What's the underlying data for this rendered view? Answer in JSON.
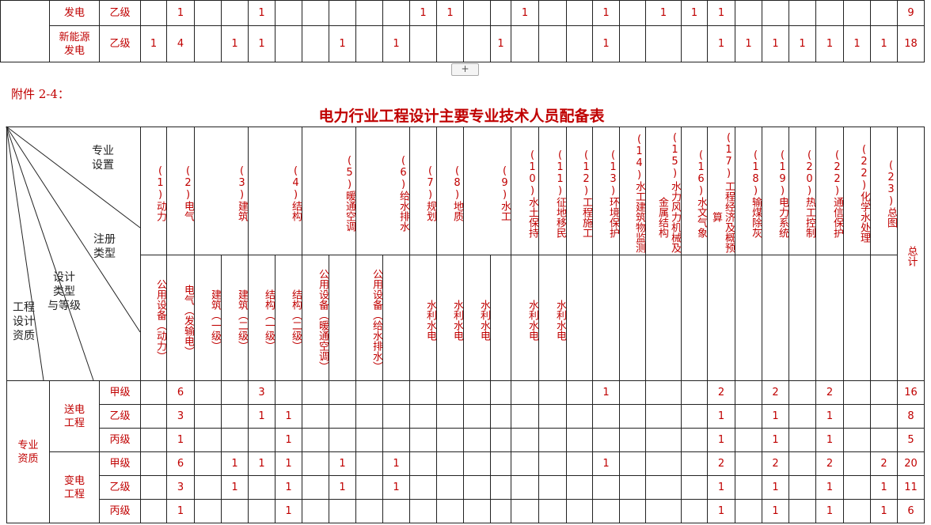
{
  "upper_table": {
    "rows": [
      {
        "category": [
          "发电"
        ],
        "grade": "乙级",
        "values": [
          null,
          1,
          null,
          null,
          1,
          null,
          null,
          null,
          null,
          null,
          1,
          1,
          null,
          null,
          1,
          null,
          null,
          1,
          null,
          1,
          1,
          1,
          null,
          null,
          null,
          null,
          null,
          null,
          9
        ]
      },
      {
        "category": [
          "新能源",
          "发电"
        ],
        "grade": "乙级",
        "values": [
          1,
          4,
          null,
          1,
          1,
          null,
          null,
          1,
          null,
          1,
          null,
          null,
          null,
          1,
          null,
          null,
          null,
          1,
          null,
          null,
          null,
          1,
          1,
          1,
          1,
          1,
          1,
          1,
          18
        ]
      }
    ]
  },
  "expand_button": "+",
  "attachment_label": "附件 2-4：",
  "title": "电力行业工程设计主要专业技术人员配备表",
  "table": {
    "corner": [
      {
        "lines": [
          "专业",
          "设置"
        ]
      },
      {
        "lines": [
          "注册",
          "类型"
        ]
      },
      {
        "lines": [
          "设计",
          "类型",
          "与等级"
        ]
      },
      {
        "lines": [
          "工程",
          "设计",
          "资质"
        ]
      }
    ],
    "groups": [
      {
        "number": "(1)",
        "name": "动力",
        "subs": [
          "公用设备（动力）"
        ]
      },
      {
        "number": "(2)",
        "name": "电气",
        "subs": [
          "电气（发输电）"
        ]
      },
      {
        "number": "(3)",
        "name": "建筑",
        "subs": [
          "建筑（一级）",
          "建筑（二级）"
        ]
      },
      {
        "number": "(4)",
        "name": "结构",
        "subs": [
          "结构（一级）",
          "结构（二级）"
        ]
      },
      {
        "number": "(5)",
        "name": "暖通空调",
        "subs": [
          "公用设备（暖通空调）",
          null
        ]
      },
      {
        "number": "(6)",
        "name": "给水排水",
        "subs": [
          "公用设备（给水排水）",
          null
        ]
      },
      {
        "number": "(7)",
        "name": "规划",
        "subs": [
          "水利水电"
        ]
      },
      {
        "number": "(8)",
        "name": "地质",
        "subs": [
          "水利水电"
        ]
      },
      {
        "number": "(9)",
        "name": "水工",
        "subs": [
          "水利水电",
          null
        ]
      },
      {
        "number": "(10)",
        "name": "水土保持",
        "subs": [
          "水利水电"
        ]
      },
      {
        "number": "(11)",
        "name": "征地移民",
        "subs": [
          "水利水电"
        ]
      },
      {
        "number": "(12)",
        "name": "工程施工",
        "subs": [
          null
        ]
      },
      {
        "number": "(13)",
        "name": "环境保护",
        "subs": [
          null
        ]
      },
      {
        "number": "(14)",
        "name": "水工建筑物监测",
        "subs": [
          null
        ]
      },
      {
        "number": "(15)",
        "name": "水力风力机械及金属结构",
        "subs": [
          null
        ]
      },
      {
        "number": "(16)",
        "name": "水文气象",
        "subs": [
          null
        ]
      },
      {
        "number": "(17)",
        "name": "工程经济及概预算",
        "subs": [
          null
        ]
      },
      {
        "number": "(18)",
        "name": "输煤除灰",
        "subs": [
          null
        ]
      },
      {
        "number": "(19)",
        "name": "电力系统",
        "subs": [
          null
        ]
      },
      {
        "number": "(20)",
        "name": "热工控制",
        "subs": [
          null
        ]
      },
      {
        "number": "(22)",
        "name": "通信保护",
        "subs": [
          null
        ]
      },
      {
        "number": "(22)",
        "name": "化学水处理",
        "subs": [
          null
        ]
      },
      {
        "number": "(23)",
        "name": "总图",
        "subs": [
          null
        ]
      }
    ],
    "total_header": "总计",
    "qualification": [
      "专业",
      "资质"
    ],
    "sections": [
      {
        "name": [
          "送电",
          "工程"
        ],
        "rows": [
          {
            "grade": "甲级",
            "values": [
              null,
              6,
              null,
              null,
              3,
              null,
              null,
              null,
              null,
              null,
              null,
              null,
              null,
              null,
              null,
              null,
              null,
              1,
              null,
              null,
              null,
              2,
              null,
              2,
              null,
              2,
              null,
              null,
              16
            ]
          },
          {
            "grade": "乙级",
            "values": [
              null,
              3,
              null,
              null,
              1,
              1,
              null,
              null,
              null,
              null,
              null,
              null,
              null,
              null,
              null,
              null,
              null,
              null,
              null,
              null,
              null,
              1,
              null,
              1,
              null,
              1,
              null,
              null,
              8
            ]
          },
          {
            "grade": "丙级",
            "values": [
              null,
              1,
              null,
              null,
              null,
              1,
              null,
              null,
              null,
              null,
              null,
              null,
              null,
              null,
              null,
              null,
              null,
              null,
              null,
              null,
              null,
              1,
              null,
              1,
              null,
              1,
              null,
              null,
              5
            ]
          }
        ]
      },
      {
        "name": [
          "变电",
          "工程"
        ],
        "rows": [
          {
            "grade": "甲级",
            "values": [
              null,
              6,
              null,
              1,
              1,
              1,
              null,
              1,
              null,
              1,
              null,
              null,
              null,
              null,
              null,
              null,
              null,
              1,
              null,
              null,
              null,
              2,
              null,
              2,
              null,
              2,
              null,
              2,
              20
            ]
          },
          {
            "grade": "乙级",
            "values": [
              null,
              3,
              null,
              1,
              null,
              1,
              null,
              1,
              null,
              1,
              null,
              null,
              null,
              null,
              null,
              null,
              null,
              null,
              null,
              null,
              null,
              1,
              null,
              1,
              null,
              1,
              null,
              1,
              11
            ]
          },
          {
            "grade": "丙级",
            "values": [
              null,
              1,
              null,
              null,
              null,
              1,
              null,
              null,
              null,
              null,
              null,
              null,
              null,
              null,
              null,
              null,
              null,
              null,
              null,
              null,
              null,
              1,
              null,
              1,
              null,
              1,
              null,
              1,
              6
            ]
          }
        ]
      }
    ]
  }
}
